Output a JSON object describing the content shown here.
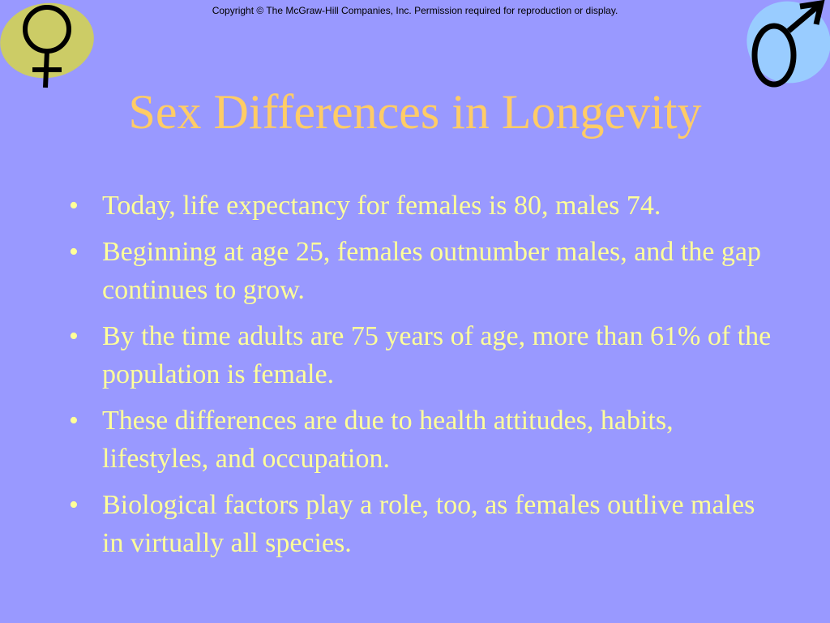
{
  "slide": {
    "copyright": "Copyright © The McGraw-Hill Companies, Inc. Permission required for reproduction or display.",
    "title": "Sex Differences in Longevity",
    "bullet_marker": "•",
    "bullets": [
      "Today, life expectancy for females is 80, males 74.",
      "Beginning at age 25, females outnumber males, and the gap continues to grow.",
      "By the time adults are 75 years of age, more than 61% of the population is female.",
      "These differences are due to health attitudes, habits, lifestyles, and occupation.",
      "Biological factors play a role, too, as females outlive males in virtually all species."
    ]
  },
  "icons": {
    "female": "female-symbol-icon",
    "male": "male-symbol-icon"
  },
  "colors": {
    "background": "#9999ff",
    "title": "#ffcc66",
    "body_text": "#ffff99",
    "female_blob": "#cccc66",
    "male_blob": "#99ccff",
    "symbol_stroke": "#000000"
  }
}
